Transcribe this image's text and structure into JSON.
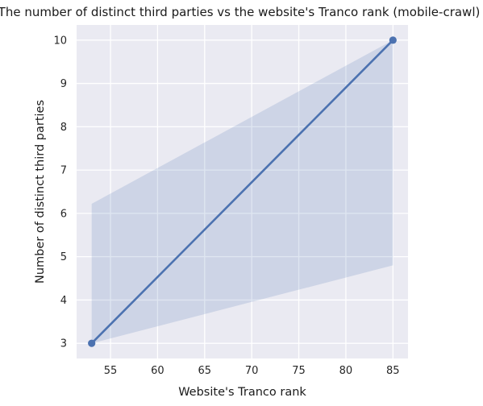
{
  "chart_data": {
    "type": "scatter",
    "title": "The number of distinct third parties vs the website's Tranco rank (mobile-crawl)",
    "xlabel": "Website's Tranco rank",
    "ylabel": "Number of distinct third parties",
    "xlim": [
      51.4,
      86.6
    ],
    "ylim": [
      2.65,
      10.35
    ],
    "xticks": [
      55,
      60,
      65,
      70,
      75,
      80,
      85
    ],
    "yticks": [
      3,
      4,
      5,
      6,
      7,
      8,
      9,
      10
    ],
    "grid": true,
    "series": [
      {
        "points": [
          {
            "x": 53,
            "y": 3
          },
          {
            "x": 85,
            "y": 10
          }
        ],
        "regression_line": [
          {
            "x": 53,
            "y": 3
          },
          {
            "x": 85,
            "y": 10
          }
        ],
        "confidence_band": [
          {
            "x": 53,
            "lower": 3.0,
            "upper": 6.22
          },
          {
            "x": 85,
            "lower": 4.8,
            "upper": 10.0
          }
        ],
        "color": "#4c72b0"
      }
    ],
    "background_color": "#eaeaf2",
    "grid_color": "#ffffff"
  }
}
